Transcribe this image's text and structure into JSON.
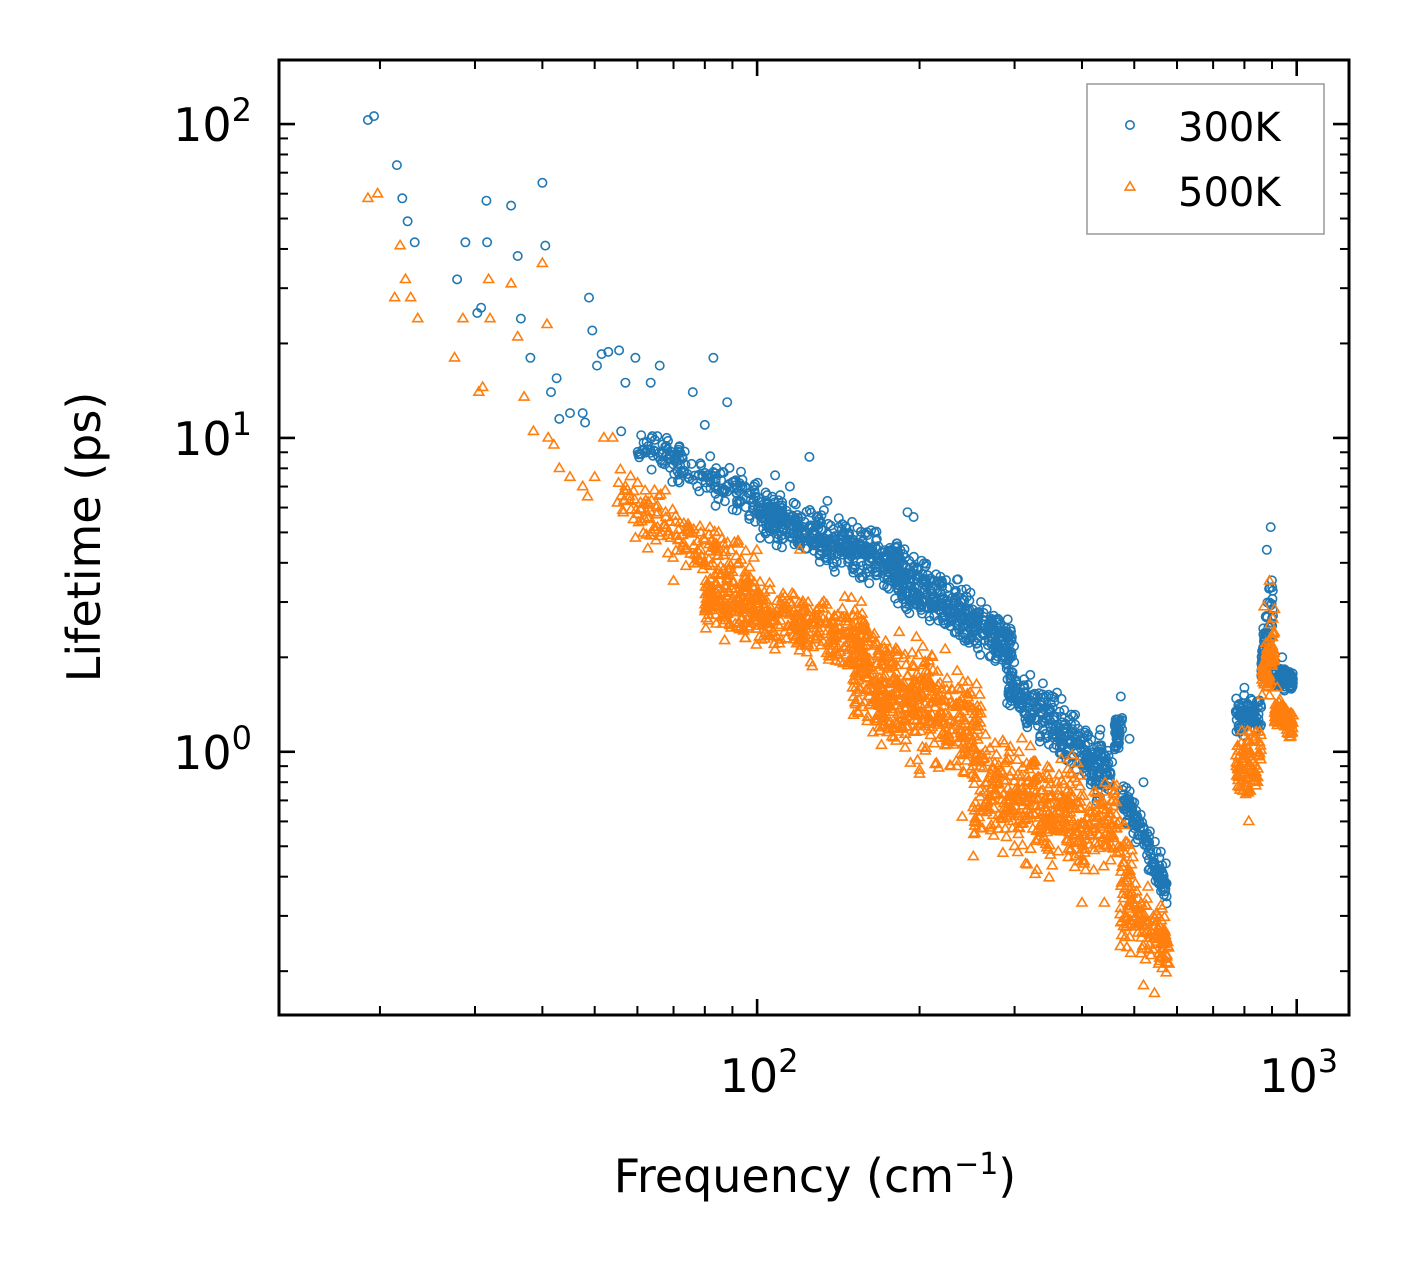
{
  "chart_data": {
    "type": "scatter",
    "title": "",
    "xlabel": "Frequency",
    "xlabel_unit": "(cm",
    "xlabel_unit_exp": "−1",
    "xlabel_unit_close": ")",
    "ylabel": "Lifetime (ps)",
    "xscale": "log",
    "yscale": "log",
    "xlim": [
      13,
      1250
    ],
    "ylim": [
      0.145,
      160
    ],
    "x_ticks": [
      {
        "value": 100,
        "base": "10",
        "exp": "2"
      },
      {
        "value": 1000,
        "base": "10",
        "exp": "3"
      }
    ],
    "y_ticks": [
      {
        "value": 100,
        "base": "10",
        "exp": "2"
      },
      {
        "value": 10,
        "base": "10",
        "exp": "1"
      },
      {
        "value": 1,
        "base": "10",
        "exp": "0"
      }
    ],
    "legend_position": "top-right",
    "colors": {
      "300K": "#1f77b4",
      "500K": "#ff7f0e"
    },
    "series": [
      {
        "name": "300K",
        "marker": "circle-open",
        "points": [
          [
            19.0,
            103
          ],
          [
            19.5,
            106
          ],
          [
            21.5,
            74
          ],
          [
            22.0,
            58
          ],
          [
            22.5,
            49
          ],
          [
            23.2,
            42
          ],
          [
            27.8,
            32
          ],
          [
            28.8,
            42
          ],
          [
            30.3,
            25
          ],
          [
            30.8,
            26
          ],
          [
            31.5,
            57
          ],
          [
            31.6,
            42
          ],
          [
            35.0,
            55
          ],
          [
            36.0,
            38
          ],
          [
            36.5,
            24
          ],
          [
            38.0,
            18
          ],
          [
            40.0,
            65
          ],
          [
            40.5,
            41
          ],
          [
            41.5,
            14
          ],
          [
            42.5,
            15.5
          ],
          [
            43.0,
            11.5
          ],
          [
            45.0,
            12
          ],
          [
            47.5,
            12
          ],
          [
            48.0,
            11.2
          ],
          [
            48.8,
            28
          ],
          [
            49.5,
            22
          ],
          [
            50.5,
            17
          ],
          [
            51.5,
            18.5
          ],
          [
            53.0,
            18.8
          ],
          [
            55.5,
            19
          ],
          [
            56.0,
            10.5
          ],
          [
            57.0,
            15
          ],
          [
            59.5,
            18
          ],
          [
            62.0,
            9
          ],
          [
            63.5,
            15
          ],
          [
            66.0,
            17
          ],
          [
            68.0,
            10
          ],
          [
            72.0,
            9
          ],
          [
            76.0,
            14
          ],
          [
            80.0,
            11
          ],
          [
            83.0,
            18
          ],
          [
            88.0,
            13
          ],
          [
            95.0,
            7
          ],
          [
            108,
            7.6
          ],
          [
            115,
            7
          ],
          [
            125,
            8.7
          ],
          [
            135,
            6.3
          ],
          [
            150,
            5.4
          ],
          [
            165,
            5
          ],
          [
            190,
            5.8
          ],
          [
            195,
            5.6
          ],
          [
            220,
            3.5
          ],
          [
            260,
            3
          ],
          [
            285,
            2
          ],
          [
            310,
            1.5
          ],
          [
            350,
            1.2
          ],
          [
            420,
            0.9
          ],
          [
            472,
            1.5
          ],
          [
            490,
            1.1
          ],
          [
            520,
            0.8
          ],
          [
            560,
            0.48
          ],
          [
            800,
            1.6
          ],
          [
            830,
            1.35
          ],
          [
            880,
            4.4
          ],
          [
            895,
            5.2
          ],
          [
            940,
            2.0
          ],
          [
            975,
            1.75
          ]
        ],
        "bands": [
          {
            "x": [
              60,
              112
            ],
            "lo": [
              8.0,
              4.5
            ],
            "hi": [
              11.5,
              7.2
            ],
            "n": 200
          },
          {
            "x": [
              100,
              185
            ],
            "lo": [
              4.5,
              3.0
            ],
            "hi": [
              7.2,
              5.0
            ],
            "n": 420
          },
          {
            "x": [
              180,
              300
            ],
            "lo": [
              2.7,
              1.6
            ],
            "hi": [
              5.0,
              2.8
            ],
            "n": 420
          },
          {
            "x": [
              290,
              455
            ],
            "lo": [
              1.2,
              0.6
            ],
            "hi": [
              2.2,
              1.2
            ],
            "n": 320
          },
          {
            "x": [
              460,
              475
            ],
            "lo": [
              0.9,
              1.0
            ],
            "hi": [
              1.4,
              1.5
            ],
            "n": 40
          },
          {
            "x": [
              475,
              575
            ],
            "lo": [
              0.6,
              0.3
            ],
            "hi": [
              0.88,
              0.45
            ],
            "n": 140
          },
          {
            "x": [
              770,
              860
            ],
            "lo": [
              1.05,
              1.1
            ],
            "hi": [
              1.6,
              1.6
            ],
            "n": 90
          },
          {
            "x": [
              860,
              905
            ],
            "lo": [
              1.5,
              2.0
            ],
            "hi": [
              2.5,
              4.5
            ],
            "n": 70
          },
          {
            "x": [
              905,
              985
            ],
            "lo": [
              1.55,
              1.5
            ],
            "hi": [
              2.0,
              1.9
            ],
            "n": 90
          }
        ]
      },
      {
        "name": "500K",
        "marker": "triangle-open",
        "points": [
          [
            19.0,
            58
          ],
          [
            19.8,
            60
          ],
          [
            21.3,
            28
          ],
          [
            21.8,
            41
          ],
          [
            22.3,
            32
          ],
          [
            22.8,
            28
          ],
          [
            23.5,
            24
          ],
          [
            27.5,
            18
          ],
          [
            28.5,
            24
          ],
          [
            30.5,
            14
          ],
          [
            31.0,
            14.5
          ],
          [
            31.8,
            32
          ],
          [
            32.0,
            24
          ],
          [
            35.0,
            31
          ],
          [
            36.0,
            21
          ],
          [
            37.0,
            13.5
          ],
          [
            38.5,
            10.5
          ],
          [
            40.0,
            36
          ],
          [
            40.8,
            23
          ],
          [
            41.0,
            10
          ],
          [
            42.0,
            9.5
          ],
          [
            43.0,
            8
          ],
          [
            45.0,
            7.5
          ],
          [
            47.5,
            7
          ],
          [
            48.5,
            6.5
          ],
          [
            50.0,
            7.5
          ],
          [
            52.0,
            10
          ],
          [
            54.0,
            10
          ],
          [
            57.0,
            7
          ],
          [
            59.0,
            5.5
          ],
          [
            62.0,
            5.5
          ],
          [
            65.0,
            6
          ],
          [
            70.0,
            3.5
          ],
          [
            80.0,
            2.8
          ],
          [
            85.0,
            3.3
          ],
          [
            95.0,
            2.3
          ],
          [
            102,
            2.8
          ],
          [
            120,
            4.4
          ],
          [
            150,
            2.2
          ],
          [
            160,
            1.25
          ],
          [
            170,
            1.05
          ],
          [
            200,
            0.85
          ],
          [
            240,
            0.62
          ],
          [
            300,
            0.5
          ],
          [
            330,
            0.42
          ],
          [
            400,
            0.33
          ],
          [
            440,
            0.33
          ],
          [
            520,
            0.18
          ],
          [
            545,
            0.17
          ],
          [
            560,
            0.22
          ],
          [
            800,
            0.95
          ],
          [
            815,
            0.6
          ],
          [
            870,
            2.9
          ],
          [
            890,
            3.5
          ],
          [
            920,
            1.6
          ],
          [
            980,
            1.15
          ]
        ],
        "bands": [
          {
            "x": [
              55,
              100
            ],
            "lo": [
              4.8,
              2.5
            ],
            "hi": [
              8.5,
              5.0
            ],
            "n": 180
          },
          {
            "x": [
              80,
              160
            ],
            "lo": [
              2.2,
              1.6
            ],
            "hi": [
              4.2,
              3.2
            ],
            "n": 450
          },
          {
            "x": [
              150,
              260
            ],
            "lo": [
              0.95,
              0.7
            ],
            "hi": [
              3.2,
              2.0
            ],
            "n": 480
          },
          {
            "x": [
              250,
              400
            ],
            "lo": [
              0.42,
              0.37
            ],
            "hi": [
              1.5,
              1.0
            ],
            "n": 380
          },
          {
            "x": [
              400,
              470
            ],
            "lo": [
              0.34,
              0.4
            ],
            "hi": [
              0.85,
              0.95
            ],
            "n": 100
          },
          {
            "x": [
              470,
              580
            ],
            "lo": [
              0.2,
              0.17
            ],
            "hi": [
              0.7,
              0.3
            ],
            "n": 160
          },
          {
            "x": [
              770,
              860
            ],
            "lo": [
              0.65,
              0.6
            ],
            "hi": [
              1.2,
              1.6
            ],
            "n": 90
          },
          {
            "x": [
              860,
              910
            ],
            "lo": [
              1.3,
              1.5
            ],
            "hi": [
              2.2,
              3.4
            ],
            "n": 70
          },
          {
            "x": [
              910,
              985
            ],
            "lo": [
              1.1,
              1.05
            ],
            "hi": [
              1.6,
              1.45
            ],
            "n": 90
          }
        ]
      }
    ]
  }
}
